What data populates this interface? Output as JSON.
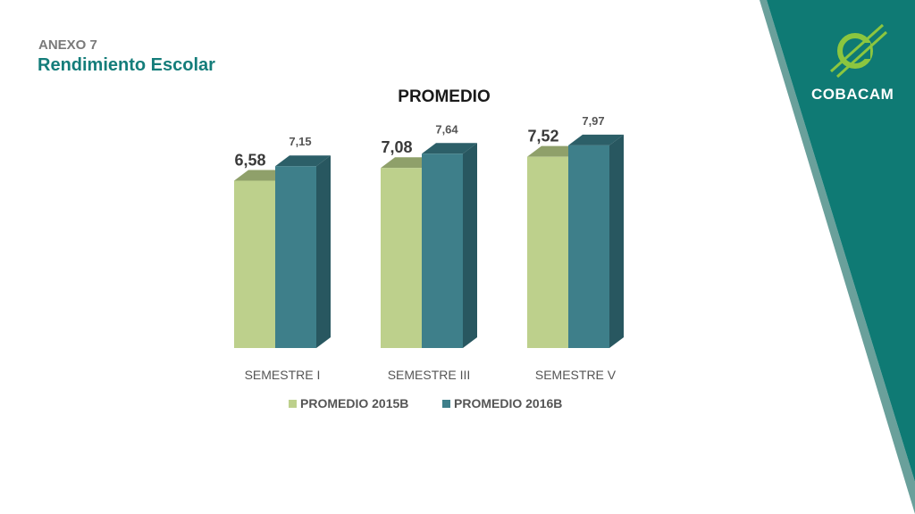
{
  "slide": {
    "kicker": "ANEXO 7",
    "heading": "Rendimiento Escolar",
    "brand": "COBACAM"
  },
  "colors": {
    "band_dark": "#0f7a74",
    "band_light": "#6aa09b",
    "logo_green": "#8cc63f",
    "series_2015": "#bdd08c",
    "series_2016": "#3e7f8a"
  },
  "chart_data": {
    "type": "bar",
    "title": "PROMEDIO",
    "categories": [
      "SEMESTRE I",
      "SEMESTRE III",
      "SEMESTRE V"
    ],
    "series": [
      {
        "name": "PROMEDIO 2015B",
        "values": [
          6.58,
          7.08,
          7.52
        ],
        "labels": [
          "6,58",
          "7,08",
          "7,52"
        ]
      },
      {
        "name": "PROMEDIO 2016B",
        "values": [
          7.15,
          7.64,
          7.97
        ],
        "labels": [
          "7,15",
          "7,64",
          "7,97"
        ]
      }
    ],
    "ylim": [
      0,
      10
    ],
    "grid": false,
    "legend": "bottom",
    "style": "3d-columns"
  }
}
